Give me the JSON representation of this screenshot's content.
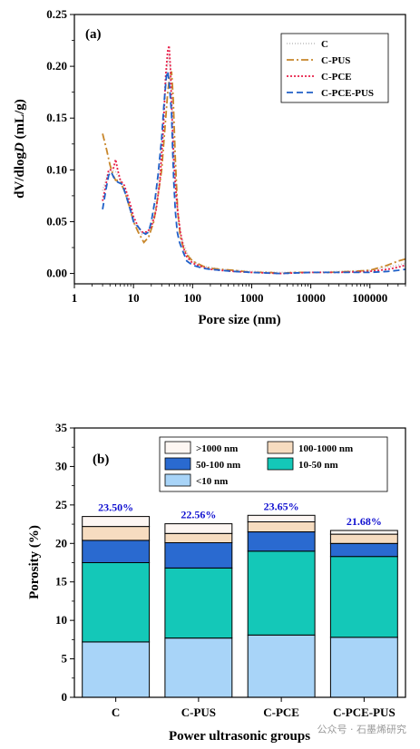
{
  "chart_data": [
    {
      "type": "line",
      "panel_label": "(a)",
      "xlabel": "Pore size (nm)",
      "ylabel_parts": [
        "dV/dlog",
        "D",
        " (mL/g)"
      ],
      "xscale": "log",
      "xlim": [
        1,
        400000
      ],
      "ylim": [
        -0.01,
        0.25
      ],
      "xticks": [
        1,
        10,
        100,
        1000,
        10000,
        100000
      ],
      "xtick_labels": [
        "1",
        "10",
        "100",
        "1000",
        "10000",
        "100000"
      ],
      "yticks": [
        0.0,
        0.05,
        0.1,
        0.15,
        0.2,
        0.25
      ],
      "ytick_labels": [
        "0.00",
        "0.05",
        "0.10",
        "0.15",
        "0.20",
        "0.25"
      ],
      "legend_position": "top-right",
      "series": [
        {
          "name": "C",
          "color": "#c8c8c8",
          "dash": "1,2",
          "x": [
            3,
            3.6,
            4.2,
            5,
            6,
            7.5,
            9,
            11,
            14,
            18,
            22,
            26,
            30,
            34,
            37,
            40,
            43,
            46,
            50,
            55,
            65,
            80,
            100,
            150,
            300,
            1000,
            3000,
            10000,
            30000,
            100000,
            300000,
            400000
          ],
          "y": [
            0.08,
            0.095,
            0.1,
            0.098,
            0.09,
            0.075,
            0.058,
            0.045,
            0.038,
            0.04,
            0.06,
            0.09,
            0.13,
            0.17,
            0.2,
            0.21,
            0.19,
            0.15,
            0.1,
            0.06,
            0.035,
            0.02,
            0.012,
            0.007,
            0.004,
            0.002,
            0.001,
            0.001,
            0.002,
            0.003,
            0.008,
            0.01
          ]
        },
        {
          "name": "C-PUS",
          "color": "#c8862a",
          "dash": "8,3,2,3",
          "x": [
            3,
            3.5,
            4,
            4.5,
            5,
            5.5,
            6,
            7,
            8,
            9,
            10,
            12,
            15,
            18,
            22,
            26,
            30,
            34,
            38,
            41,
            44,
            47,
            51,
            56,
            62,
            70,
            80,
            100,
            150,
            200,
            300,
            500,
            1000,
            2000,
            3000,
            5000,
            10000,
            20000,
            50000,
            100000,
            200000,
            300000,
            400000
          ],
          "y": [
            0.135,
            0.12,
            0.105,
            0.095,
            0.09,
            0.09,
            0.088,
            0.08,
            0.07,
            0.06,
            0.05,
            0.04,
            0.03,
            0.035,
            0.05,
            0.075,
            0.1,
            0.14,
            0.175,
            0.19,
            0.195,
            0.17,
            0.11,
            0.06,
            0.035,
            0.025,
            0.018,
            0.012,
            0.007,
            0.005,
            0.004,
            0.003,
            0.001,
            0.001,
            0.0,
            0.001,
            0.001,
            0.001,
            0.002,
            0.003,
            0.008,
            0.012,
            0.014
          ]
        },
        {
          "name": "C-PCE",
          "color": "#e8204a",
          "dash": "2,2",
          "x": [
            3,
            3.4,
            3.8,
            4.2,
            4.6,
            5,
            5.4,
            6,
            7,
            8,
            9,
            10,
            12,
            14,
            17,
            20,
            24,
            28,
            32,
            35,
            38,
            40,
            42,
            45,
            48,
            52,
            56,
            62,
            70,
            80,
            100,
            150,
            200,
            300,
            500,
            1000,
            3000,
            10000,
            30000,
            100000,
            200000,
            300000,
            400000
          ],
          "y": [
            0.07,
            0.085,
            0.1,
            0.1,
            0.102,
            0.11,
            0.1,
            0.09,
            0.085,
            0.075,
            0.065,
            0.055,
            0.045,
            0.04,
            0.04,
            0.045,
            0.06,
            0.09,
            0.14,
            0.19,
            0.215,
            0.22,
            0.2,
            0.15,
            0.11,
            0.08,
            0.06,
            0.04,
            0.025,
            0.016,
            0.01,
            0.006,
            0.004,
            0.003,
            0.002,
            0.001,
            0.0,
            0.001,
            0.001,
            0.002,
            0.004,
            0.006,
            0.008
          ]
        },
        {
          "name": "C-PCE-PUS",
          "color": "#2060c8",
          "dash": "7,4",
          "x": [
            3,
            3.4,
            3.8,
            4.2,
            4.6,
            5,
            5.5,
            6,
            6.5,
            7,
            7.5,
            8,
            9,
            10,
            12,
            14,
            16,
            18,
            20,
            23,
            26,
            30,
            33,
            36,
            38,
            40,
            42,
            44,
            46,
            48,
            51,
            55,
            60,
            70,
            80,
            100,
            150,
            200,
            300,
            500,
            1000,
            3000,
            10000,
            30000,
            100000,
            200000,
            300000,
            400000
          ],
          "y": [
            0.062,
            0.08,
            0.095,
            0.098,
            0.093,
            0.09,
            0.088,
            0.087,
            0.086,
            0.08,
            0.075,
            0.07,
            0.06,
            0.05,
            0.045,
            0.04,
            0.038,
            0.04,
            0.05,
            0.07,
            0.095,
            0.13,
            0.165,
            0.19,
            0.195,
            0.185,
            0.17,
            0.155,
            0.12,
            0.09,
            0.06,
            0.04,
            0.03,
            0.02,
            0.012,
            0.008,
            0.005,
            0.004,
            0.003,
            0.002,
            0.001,
            0.0,
            0.001,
            0.001,
            0.001,
            0.002,
            0.003,
            0.004
          ]
        }
      ]
    },
    {
      "type": "bar",
      "stacked": true,
      "panel_label": "(b)",
      "xlabel": "Power ultrasonic groups",
      "ylabel": "Porosity (%)",
      "ylim": [
        0,
        35
      ],
      "yticks": [
        0,
        5,
        10,
        15,
        20,
        25,
        30,
        35
      ],
      "ytick_labels": [
        "0",
        "5",
        "10",
        "15",
        "20",
        "25",
        "30",
        "35"
      ],
      "categories": [
        "C",
        "C-PUS",
        "C-PCE",
        "C-PCE-PUS"
      ],
      "totals": [
        23.5,
        22.56,
        23.65,
        21.68
      ],
      "total_labels": [
        "23.50%",
        "22.56%",
        "23.65%",
        "21.68%"
      ],
      "legend_position": "top",
      "legend_order": [
        4,
        3,
        2,
        1,
        0
      ],
      "series": [
        {
          "name": "<10 nm",
          "color": "#a8d4f8",
          "values": [
            7.2,
            7.7,
            8.1,
            7.8
          ]
        },
        {
          "name": "10-50 nm",
          "color": "#14c8b8",
          "values": [
            10.3,
            9.1,
            10.9,
            10.5
          ]
        },
        {
          "name": "50-100 nm",
          "color": "#2a6ad0",
          "values": [
            2.9,
            3.3,
            2.5,
            1.7
          ]
        },
        {
          "name": "100-1000 nm",
          "color": "#f6dcc0",
          "values": [
            1.8,
            1.2,
            1.3,
            1.2
          ]
        },
        {
          "name": ">1000 nm",
          "color": "#fdf6f2",
          "values": [
            1.3,
            1.26,
            0.85,
            0.48
          ]
        }
      ]
    }
  ],
  "watermark": "公众号 · 石墨烯研究"
}
